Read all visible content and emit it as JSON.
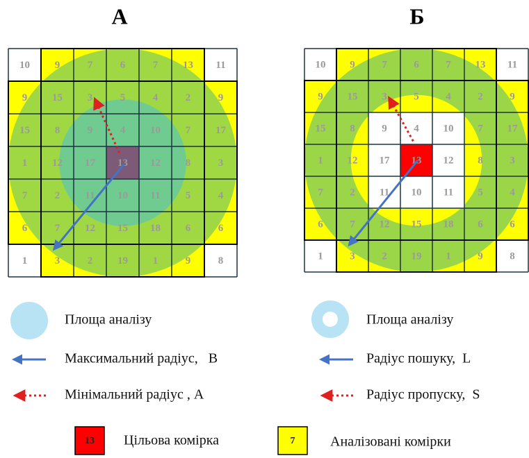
{
  "panels": [
    {
      "title": "А",
      "grid": [
        [
          10,
          9,
          7,
          6,
          7,
          13,
          11
        ],
        [
          9,
          15,
          3,
          5,
          4,
          2,
          9
        ],
        [
          15,
          8,
          9,
          4,
          10,
          7,
          17
        ],
        [
          1,
          12,
          17,
          13,
          12,
          8,
          3
        ],
        [
          7,
          2,
          11,
          10,
          11,
          5,
          4
        ],
        [
          6,
          7,
          12,
          15,
          18,
          6,
          6
        ],
        [
          1,
          3,
          2,
          19,
          1,
          9,
          8
        ]
      ]
    },
    {
      "title": "Б",
      "grid": [
        [
          10,
          9,
          7,
          6,
          7,
          13,
          11
        ],
        [
          9,
          15,
          3,
          5,
          4,
          2,
          9
        ],
        [
          15,
          8,
          9,
          4,
          10,
          7,
          17
        ],
        [
          1,
          12,
          17,
          13,
          12,
          8,
          3
        ],
        [
          7,
          2,
          11,
          10,
          11,
          5,
          4
        ],
        [
          6,
          7,
          12,
          15,
          18,
          6,
          6
        ],
        [
          1,
          3,
          2,
          19,
          1,
          9,
          8
        ]
      ]
    }
  ],
  "legend": {
    "left": {
      "area": "Площа аналізу",
      "max_radius": "Максимальний радіус,   B",
      "min_radius": "Мінімальний радіус , А"
    },
    "right": {
      "area": "Площа аналізу",
      "search_radius": "Радіус пошуку,  L",
      "skip_radius": "Радіус пропуску,  S"
    },
    "target": {
      "sample": "13",
      "label": "Цільова комірка"
    },
    "analyzed": {
      "sample": "7",
      "label": "Аналізовані комірки"
    }
  }
}
